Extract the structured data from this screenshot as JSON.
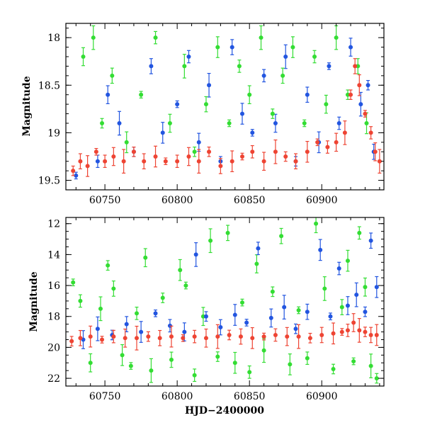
{
  "chart_data": [
    {
      "type": "scatter",
      "panel": "top",
      "ylabel": "Magnitude",
      "xlabel": "",
      "xlim": [
        60723,
        60943
      ],
      "ylim": [
        19.6,
        17.85
      ],
      "y_inverted": true,
      "x_ticks": [
        60750,
        60800,
        60850,
        60900
      ],
      "y_ticks": [
        18,
        18.5,
        19,
        19.5
      ],
      "x_tick_labels": [
        "60750",
        "60800",
        "60850",
        "60900"
      ],
      "y_tick_labels": [
        "18",
        "18.5",
        "19",
        "19.5"
      ],
      "error_bars": true,
      "series": [
        {
          "color": "#2255e0",
          "points": [
            [
              60730,
              19.45
            ],
            [
              60745,
              19.3
            ],
            [
              60752,
              18.6
            ],
            [
              60760,
              18.9
            ],
            [
              60770,
              19.2
            ],
            [
              60782,
              18.3
            ],
            [
              60790,
              19.0
            ],
            [
              60800,
              18.7
            ],
            [
              60808,
              18.2
            ],
            [
              60815,
              19.1
            ],
            [
              60822,
              18.5
            ],
            [
              60830,
              19.3
            ],
            [
              60838,
              18.1
            ],
            [
              60845,
              18.8
            ],
            [
              60852,
              19.0
            ],
            [
              60860,
              18.4
            ],
            [
              60868,
              18.9
            ],
            [
              60875,
              18.2
            ],
            [
              60882,
              19.3
            ],
            [
              60890,
              18.6
            ],
            [
              60898,
              19.1
            ],
            [
              60905,
              18.3
            ],
            [
              60912,
              18.9
            ],
            [
              60920,
              18.1
            ],
            [
              60927,
              18.7
            ],
            [
              60932,
              18.5
            ],
            [
              60936,
              19.2
            ]
          ]
        },
        {
          "color": "#33dd33",
          "points": [
            [
              60735,
              18.2
            ],
            [
              60742,
              18.0
            ],
            [
              60748,
              18.9
            ],
            [
              60755,
              18.4
            ],
            [
              60765,
              19.1
            ],
            [
              60775,
              18.6
            ],
            [
              60785,
              18.0
            ],
            [
              60795,
              18.9
            ],
            [
              60805,
              18.3
            ],
            [
              60812,
              19.2
            ],
            [
              60820,
              18.7
            ],
            [
              60828,
              18.1
            ],
            [
              60836,
              18.9
            ],
            [
              60843,
              18.3
            ],
            [
              60850,
              18.6
            ],
            [
              60858,
              18.0
            ],
            [
              60866,
              18.8
            ],
            [
              60873,
              18.4
            ],
            [
              60880,
              18.1
            ],
            [
              60888,
              18.9
            ],
            [
              60895,
              18.2
            ],
            [
              60903,
              18.7
            ],
            [
              60910,
              18.0
            ],
            [
              60918,
              18.6
            ],
            [
              60925,
              18.3
            ],
            [
              60931,
              18.9
            ]
          ]
        },
        {
          "color": "#ee4433",
          "points": [
            [
              60728,
              19.4
            ],
            [
              60733,
              19.3
            ],
            [
              60738,
              19.35
            ],
            [
              60744,
              19.2
            ],
            [
              60750,
              19.3
            ],
            [
              60756,
              19.25
            ],
            [
              60763,
              19.3
            ],
            [
              60770,
              19.2
            ],
            [
              60777,
              19.3
            ],
            [
              60785,
              19.25
            ],
            [
              60792,
              19.3
            ],
            [
              60800,
              19.3
            ],
            [
              60808,
              19.25
            ],
            [
              60815,
              19.3
            ],
            [
              60822,
              19.2
            ],
            [
              60830,
              19.35
            ],
            [
              60838,
              19.3
            ],
            [
              60845,
              19.25
            ],
            [
              60852,
              19.2
            ],
            [
              60860,
              19.3
            ],
            [
              60868,
              19.2
            ],
            [
              60875,
              19.25
            ],
            [
              60882,
              19.3
            ],
            [
              60890,
              19.2
            ],
            [
              60897,
              19.1
            ],
            [
              60904,
              19.15
            ],
            [
              60910,
              19.1
            ],
            [
              60916,
              19.0
            ],
            [
              60920,
              18.6
            ],
            [
              60923,
              18.3
            ],
            [
              60926,
              18.5
            ],
            [
              60930,
              18.8
            ],
            [
              60934,
              19.0
            ],
            [
              60937,
              19.2
            ],
            [
              60940,
              19.3
            ]
          ]
        }
      ]
    },
    {
      "type": "scatter",
      "panel": "bottom",
      "ylabel": "Magnitude",
      "xlabel": "HJD−2400000",
      "xlim": [
        60723,
        60943
      ],
      "ylim": [
        22.5,
        11.6
      ],
      "y_inverted": true,
      "x_ticks": [
        60750,
        60800,
        60850,
        60900
      ],
      "y_ticks": [
        12,
        14,
        16,
        18,
        20,
        22
      ],
      "x_tick_labels": [
        "60750",
        "60800",
        "60850",
        "60900"
      ],
      "y_tick_labels": [
        "12",
        "14",
        "16",
        "18",
        "20",
        "22"
      ],
      "error_bars": true,
      "series": [
        {
          "color": "#33dd33",
          "points": [
            [
              60728,
              15.8
            ],
            [
              60733,
              17.0
            ],
            [
              60740,
              21.0
            ],
            [
              60747,
              17.5
            ],
            [
              60752,
              14.7
            ],
            [
              60756,
              16.2
            ],
            [
              60762,
              20.5
            ],
            [
              60768,
              21.2
            ],
            [
              60772,
              17.8
            ],
            [
              60778,
              14.2
            ],
            [
              60782,
              21.5
            ],
            [
              60790,
              16.8
            ],
            [
              60796,
              20.8
            ],
            [
              60802,
              15.0
            ],
            [
              60806,
              16.0
            ],
            [
              60812,
              21.8
            ],
            [
              60818,
              18.0
            ],
            [
              60823,
              13.1
            ],
            [
              60828,
              20.6
            ],
            [
              60835,
              12.6
            ],
            [
              60840,
              21.0
            ],
            [
              60845,
              17.1
            ],
            [
              60850,
              21.6
            ],
            [
              60855,
              14.6
            ],
            [
              60860,
              20.2
            ],
            [
              60866,
              16.4
            ],
            [
              60872,
              12.8
            ],
            [
              60878,
              21.1
            ],
            [
              60884,
              17.6
            ],
            [
              60890,
              20.7
            ],
            [
              60896,
              12.0
            ],
            [
              60902,
              16.2
            ],
            [
              60908,
              21.4
            ],
            [
              60914,
              17.4
            ],
            [
              60918,
              14.4
            ],
            [
              60922,
              20.9
            ],
            [
              60926,
              12.6
            ],
            [
              60930,
              16.1
            ],
            [
              60934,
              21.2
            ],
            [
              60938,
              22.0
            ]
          ]
        },
        {
          "color": "#2255e0",
          "points": [
            [
              60735,
              19.5
            ],
            [
              60745,
              18.8
            ],
            [
              60755,
              19.2
            ],
            [
              60765,
              18.5
            ],
            [
              60775,
              19.0
            ],
            [
              60785,
              17.8
            ],
            [
              60795,
              18.6
            ],
            [
              60805,
              19.0
            ],
            [
              60813,
              14.0
            ],
            [
              60820,
              18.0
            ],
            [
              60830,
              18.7
            ],
            [
              60840,
              17.9
            ],
            [
              60848,
              18.4
            ],
            [
              60856,
              13.6
            ],
            [
              60865,
              18.1
            ],
            [
              60874,
              17.4
            ],
            [
              60882,
              18.8
            ],
            [
              60890,
              17.7
            ],
            [
              60899,
              13.7
            ],
            [
              60906,
              18.0
            ],
            [
              60912,
              14.9
            ],
            [
              60918,
              17.3
            ],
            [
              60924,
              16.6
            ],
            [
              60930,
              17.7
            ],
            [
              60934,
              13.1
            ],
            [
              60938,
              16.1
            ]
          ]
        },
        {
          "color": "#ee4433",
          "points": [
            [
              60727,
              19.6
            ],
            [
              60733,
              19.4
            ],
            [
              60740,
              19.3
            ],
            [
              60748,
              19.5
            ],
            [
              60756,
              19.3
            ],
            [
              60764,
              19.4
            ],
            [
              60772,
              19.4
            ],
            [
              60780,
              19.3
            ],
            [
              60788,
              19.4
            ],
            [
              60796,
              19.3
            ],
            [
              60804,
              19.4
            ],
            [
              60812,
              19.3
            ],
            [
              60820,
              19.4
            ],
            [
              60828,
              19.3
            ],
            [
              60836,
              19.2
            ],
            [
              60844,
              19.3
            ],
            [
              60852,
              19.4
            ],
            [
              60860,
              19.3
            ],
            [
              60868,
              19.2
            ],
            [
              60876,
              19.3
            ],
            [
              60884,
              19.3
            ],
            [
              60892,
              19.4
            ],
            [
              60900,
              19.2
            ],
            [
              60908,
              19.1
            ],
            [
              60914,
              19.0
            ],
            [
              60918,
              18.9
            ],
            [
              60922,
              18.4
            ],
            [
              60926,
              18.9
            ],
            [
              60930,
              19.0
            ],
            [
              60934,
              19.2
            ],
            [
              60938,
              19.2
            ]
          ]
        }
      ]
    }
  ]
}
